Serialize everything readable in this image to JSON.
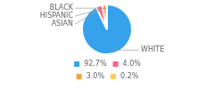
{
  "chart_data": {
    "type": "pie",
    "categories": [
      "WHITE",
      "ASIAN",
      "HISPANIC",
      "BLACK"
    ],
    "values": [
      92.7,
      4.0,
      3.0,
      0.2
    ],
    "value_labels": [
      "92.7%",
      "4.0%",
      "3.0%",
      "0.2%"
    ],
    "legend": "bottom"
  }
}
